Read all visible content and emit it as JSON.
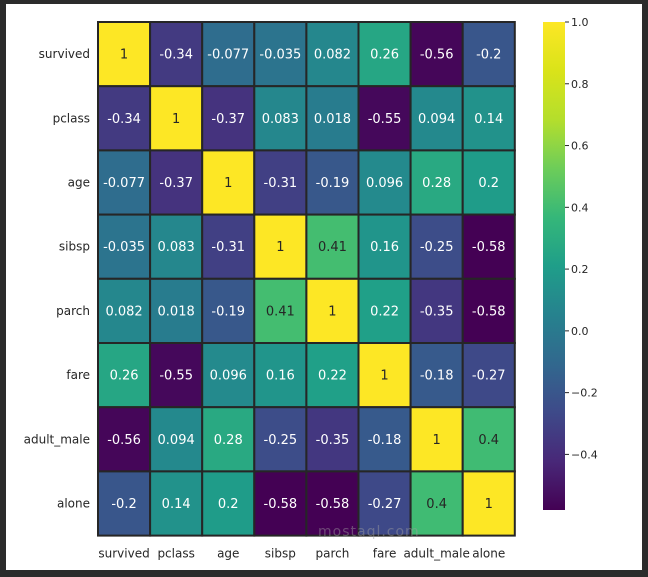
{
  "chart_data": {
    "type": "heatmap",
    "title": "",
    "xlabel": "",
    "ylabel": "",
    "rows": [
      "survived",
      "pclass",
      "age",
      "sibsp",
      "parch",
      "fare",
      "adult_male",
      "alone"
    ],
    "columns": [
      "survived",
      "pclass",
      "age",
      "sibsp",
      "parch",
      "fare",
      "adult_male",
      "alone"
    ],
    "values": [
      [
        1,
        -0.34,
        -0.077,
        -0.035,
        0.082,
        0.26,
        -0.56,
        -0.2
      ],
      [
        -0.34,
        1,
        -0.37,
        0.083,
        0.018,
        -0.55,
        0.094,
        0.14
      ],
      [
        -0.077,
        -0.37,
        1,
        -0.31,
        -0.19,
        0.096,
        0.28,
        0.2
      ],
      [
        -0.035,
        0.083,
        -0.31,
        1,
        0.41,
        0.16,
        -0.25,
        -0.58
      ],
      [
        0.082,
        0.018,
        -0.19,
        0.41,
        1,
        0.22,
        -0.35,
        -0.58
      ],
      [
        0.26,
        -0.55,
        0.096,
        0.16,
        0.22,
        1,
        -0.18,
        -0.27
      ],
      [
        -0.56,
        0.094,
        0.28,
        -0.25,
        -0.35,
        -0.18,
        1,
        0.4
      ],
      [
        -0.2,
        0.14,
        0.2,
        -0.58,
        -0.58,
        -0.27,
        0.4,
        1
      ]
    ],
    "annotations": [
      [
        "1",
        "-0.34",
        "-0.077",
        "-0.035",
        "0.082",
        "0.26",
        "-0.56",
        "-0.2"
      ],
      [
        "-0.34",
        "1",
        "-0.37",
        "0.083",
        "0.018",
        "-0.55",
        "0.094",
        "0.14"
      ],
      [
        "-0.077",
        "-0.37",
        "1",
        "-0.31",
        "-0.19",
        "0.096",
        "0.28",
        "0.2"
      ],
      [
        "-0.035",
        "0.083",
        "-0.31",
        "1",
        "0.41",
        "0.16",
        "-0.25",
        "-0.58"
      ],
      [
        "0.082",
        "0.018",
        "-0.19",
        "0.41",
        "1",
        "0.22",
        "-0.35",
        "-0.58"
      ],
      [
        "0.26",
        "-0.55",
        "0.096",
        "0.16",
        "0.22",
        "1",
        "-0.18",
        "-0.27"
      ],
      [
        "-0.56",
        "0.094",
        "0.28",
        "-0.25",
        "-0.35",
        "-0.18",
        "1",
        "0.4"
      ],
      [
        "-0.2",
        "0.14",
        "0.2",
        "-0.58",
        "-0.58",
        "-0.27",
        "0.4",
        "1"
      ]
    ],
    "colormap": "viridis",
    "vmin": -0.58,
    "vmax": 1.0,
    "colorbar": {
      "ticks": [
        1.0,
        0.8,
        0.6,
        0.4,
        0.2,
        0.0,
        -0.2,
        -0.4
      ],
      "tick_labels": [
        "1.0",
        "0.8",
        "0.6",
        "0.4",
        "0.2",
        "0.0",
        "−0.2",
        "−0.4"
      ],
      "placement": "right"
    },
    "grid_line_color": "#262626"
  },
  "watermark": "mostaql.com"
}
